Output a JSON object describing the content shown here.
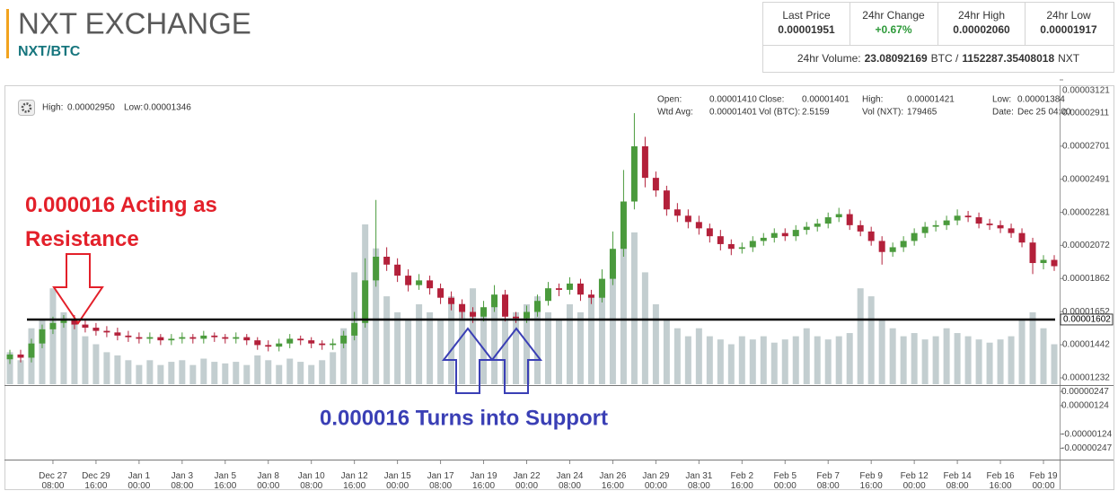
{
  "header": {
    "title": "NXT EXCHANGE",
    "pair": "NXT/BTC"
  },
  "stats": {
    "cells": [
      {
        "label": "Last Price",
        "value": "0.00001951"
      },
      {
        "label": "24hr Change",
        "value": "+0.67%"
      },
      {
        "label": "24hr High",
        "value": "0.00002060"
      },
      {
        "label": "24hr Low",
        "value": "0.00001917"
      }
    ],
    "volume": {
      "label": "24hr Volume:",
      "btc": "23.08092169",
      "btc_unit": "BTC /",
      "nxt": "1152287.35408018",
      "nxt_unit": "NXT"
    }
  },
  "chart_info": {
    "range": [
      {
        "label": "High:",
        "value": "0.00002950"
      },
      {
        "label": "Low:",
        "value": "0.00001346"
      }
    ],
    "ohlc": [
      [
        {
          "label": "Open:",
          "value": "0.00001410"
        },
        {
          "label": "Close:",
          "value": "0.00001401"
        },
        {
          "label": "High:",
          "value": "0.00001421"
        },
        {
          "label": "Low:",
          "value": "0.00001384"
        }
      ],
      [
        {
          "label": "Wtd Avg:",
          "value": "0.00001401"
        },
        {
          "label": "Vol (BTC):",
          "value": "2.5159"
        },
        {
          "label": "Vol (NXT):",
          "value": "179465"
        },
        {
          "label": "Date:",
          "value": "Dec 25 04:00"
        }
      ]
    ]
  },
  "chart_data": {
    "type": "candlestick",
    "categories": [
      null,
      null,
      null,
      null,
      "Dec 27\n08:00",
      null,
      null,
      null,
      "Dec 29\n16:00",
      null,
      null,
      null,
      "Jan 1\n00:00",
      null,
      null,
      null,
      "Jan 3\n08:00",
      null,
      null,
      null,
      "Jan 5\n16:00",
      null,
      null,
      null,
      "Jan 8\n00:00",
      null,
      null,
      null,
      "Jan 10\n08:00",
      null,
      null,
      null,
      "Jan 12\n16:00",
      null,
      null,
      null,
      "Jan 15\n00:00",
      null,
      null,
      null,
      "Jan 17\n08:00",
      null,
      null,
      null,
      "Jan 19\n16:00",
      null,
      null,
      null,
      "Jan 22\n00:00",
      null,
      null,
      null,
      "Jan 24\n08:00",
      null,
      null,
      null,
      "Jan 26\n16:00",
      null,
      null,
      null,
      "Jan 29\n00:00",
      null,
      null,
      null,
      "Jan 31\n08:00",
      null,
      null,
      null,
      "Feb 2\n16:00",
      null,
      null,
      null,
      "Feb 5\n00:00",
      null,
      null,
      null,
      "Feb 7\n08:00",
      null,
      null,
      null,
      "Feb 9\n16:00",
      null,
      null,
      null,
      "Feb 12\n00:00",
      null,
      null,
      null,
      "Feb 14\n08:00",
      null,
      null,
      null,
      "Feb 16\n16:00",
      null,
      null,
      null,
      "Feb 19\n00:00",
      null
    ],
    "open": [
      1.35e-05,
      1.38e-05,
      1.36e-05,
      1.45e-05,
      1.54e-05,
      1.58e-05,
      1.6e-05,
      1.57e-05,
      1.55e-05,
      1.53e-05,
      1.52e-05,
      1.5e-05,
      1.49e-05,
      1.48e-05,
      1.49e-05,
      1.47e-05,
      1.48e-05,
      1.49e-05,
      1.48e-05,
      1.5e-05,
      1.49e-05,
      1.48e-05,
      1.49e-05,
      1.47e-05,
      1.44e-05,
      1.43e-05,
      1.45e-05,
      1.48e-05,
      1.47e-05,
      1.45e-05,
      1.44e-05,
      1.45e-05,
      1.5e-05,
      1.58e-05,
      1.85e-05,
      2e-05,
      1.95e-05,
      1.88e-05,
      1.82e-05,
      1.85e-05,
      1.8e-05,
      1.74e-05,
      1.7e-05,
      1.65e-05,
      1.62e-05,
      1.68e-05,
      1.76e-05,
      1.62e-05,
      1.61e-05,
      1.65e-05,
      1.72e-05,
      1.8e-05,
      1.79e-05,
      1.83e-05,
      1.76e-05,
      1.74e-05,
      1.86e-05,
      2.05e-05,
      2.35e-05,
      2.7e-05,
      2.5e-05,
      2.42e-05,
      2.3e-05,
      2.26e-05,
      2.22e-05,
      2.18e-05,
      2.13e-05,
      2.08e-05,
      2.05e-05,
      2.06e-05,
      2.1e-05,
      2.12e-05,
      2.15e-05,
      2.13e-05,
      2.17e-05,
      2.19e-05,
      2.21e-05,
      2.25e-05,
      2.27e-05,
      2.2e-05,
      2.16e-05,
      2.1e-05,
      2.03e-05,
      2.06e-05,
      2.1e-05,
      2.15e-05,
      2.19e-05,
      2.2e-05,
      2.23e-05,
      2.26e-05,
      2.25e-05,
      2.21e-05,
      2.2e-05,
      2.18e-05,
      2.15e-05,
      2.09e-05,
      1.96e-05,
      1.98e-05
    ],
    "high": [
      1.41e-05,
      1.41e-05,
      1.48e-05,
      1.57e-05,
      1.62e-05,
      1.63e-05,
      1.63e-05,
      1.6e-05,
      1.58e-05,
      1.56e-05,
      1.55e-05,
      1.53e-05,
      1.52e-05,
      1.52e-05,
      1.51e-05,
      1.51e-05,
      1.52e-05,
      1.51e-05,
      1.53e-05,
      1.52e-05,
      1.51e-05,
      1.52e-05,
      1.51e-05,
      1.49e-05,
      1.47e-05,
      1.48e-05,
      1.51e-05,
      1.5e-05,
      1.49e-05,
      1.47e-05,
      1.48e-05,
      1.53e-05,
      1.65e-05,
      1.99e-05,
      2.36e-05,
      2.06e-05,
      1.99e-05,
      1.92e-05,
      1.89e-05,
      1.88e-05,
      1.83e-05,
      1.78e-05,
      1.73e-05,
      1.68e-05,
      1.72e-05,
      1.82e-05,
      1.79e-05,
      1.65e-05,
      1.69e-05,
      1.76e-05,
      1.84e-05,
      1.83e-05,
      1.87e-05,
      1.86e-05,
      1.79e-05,
      1.92e-05,
      2.16e-05,
      2.55e-05,
      2.91e-05,
      2.76e-05,
      2.54e-05,
      2.45e-05,
      2.34e-05,
      2.3e-05,
      2.26e-05,
      2.21e-05,
      2.17e-05,
      2.11e-05,
      2.09e-05,
      2.13e-05,
      2.15e-05,
      2.18e-05,
      2.18e-05,
      2.2e-05,
      2.22e-05,
      2.24e-05,
      2.28e-05,
      2.31e-05,
      2.3e-05,
      2.23e-05,
      2.19e-05,
      2.13e-05,
      2.09e-05,
      2.13e-05,
      2.18e-05,
      2.22e-05,
      2.23e-05,
      2.26e-05,
      2.3e-05,
      2.29e-05,
      2.28e-05,
      2.24e-05,
      2.23e-05,
      2.21e-05,
      2.18e-05,
      2.12e-05,
      2.01e-05,
      2.01e-05
    ],
    "low": [
      1.32e-05,
      1.33e-05,
      1.33e-05,
      1.42e-05,
      1.51e-05,
      1.55e-05,
      1.54e-05,
      1.52e-05,
      1.5e-05,
      1.49e-05,
      1.47e-05,
      1.46e-05,
      1.45e-05,
      1.45e-05,
      1.44e-05,
      1.44e-05,
      1.45e-05,
      1.45e-05,
      1.45e-05,
      1.46e-05,
      1.45e-05,
      1.45e-05,
      1.44e-05,
      1.41e-05,
      1.4e-05,
      1.4e-05,
      1.42e-05,
      1.44e-05,
      1.42e-05,
      1.41e-05,
      1.41e-05,
      1.42e-05,
      1.47e-05,
      1.55e-05,
      1.81e-05,
      1.91e-05,
      1.84e-05,
      1.78e-05,
      1.79e-05,
      1.76e-05,
      1.7e-05,
      1.66e-05,
      1.61e-05,
      1.58e-05,
      1.59e-05,
      1.65e-05,
      1.59e-05,
      1.58e-05,
      1.58e-05,
      1.62e-05,
      1.69e-05,
      1.75e-05,
      1.76e-05,
      1.72e-05,
      1.7e-05,
      1.71e-05,
      1.82e-05,
      2e-05,
      2.3e-05,
      2.44e-05,
      2.38e-05,
      2.26e-05,
      2.22e-05,
      2.18e-05,
      2.14e-05,
      2.09e-05,
      2.04e-05,
      2.01e-05,
      2.02e-05,
      2.03e-05,
      2.07e-05,
      2.09e-05,
      2.1e-05,
      2.1e-05,
      2.14e-05,
      2.16e-05,
      2.18e-05,
      2.22e-05,
      2.17e-05,
      2.13e-05,
      2.07e-05,
      1.95e-05,
      2e-05,
      2.03e-05,
      2.07e-05,
      2.12e-05,
      2.16e-05,
      2.17e-05,
      2.2e-05,
      2.22e-05,
      2.18e-05,
      2.17e-05,
      2.15e-05,
      2.12e-05,
      2.06e-05,
      1.89e-05,
      1.92e-05,
      1.91e-05
    ],
    "close": [
      1.38e-05,
      1.36e-05,
      1.45e-05,
      1.54e-05,
      1.58e-05,
      1.6e-05,
      1.57e-05,
      1.55e-05,
      1.53e-05,
      1.52e-05,
      1.5e-05,
      1.49e-05,
      1.48e-05,
      1.49e-05,
      1.47e-05,
      1.48e-05,
      1.49e-05,
      1.48e-05,
      1.5e-05,
      1.49e-05,
      1.48e-05,
      1.49e-05,
      1.47e-05,
      1.44e-05,
      1.43e-05,
      1.45e-05,
      1.48e-05,
      1.47e-05,
      1.45e-05,
      1.44e-05,
      1.45e-05,
      1.5e-05,
      1.58e-05,
      1.85e-05,
      2e-05,
      1.95e-05,
      1.88e-05,
      1.82e-05,
      1.85e-05,
      1.8e-05,
      1.74e-05,
      1.7e-05,
      1.65e-05,
      1.62e-05,
      1.68e-05,
      1.76e-05,
      1.62e-05,
      1.61e-05,
      1.65e-05,
      1.72e-05,
      1.8e-05,
      1.79e-05,
      1.83e-05,
      1.76e-05,
      1.74e-05,
      1.86e-05,
      2.05e-05,
      2.35e-05,
      2.7e-05,
      2.5e-05,
      2.42e-05,
      2.3e-05,
      2.26e-05,
      2.22e-05,
      2.18e-05,
      2.13e-05,
      2.08e-05,
      2.05e-05,
      2.06e-05,
      2.1e-05,
      2.12e-05,
      2.15e-05,
      2.13e-05,
      2.17e-05,
      2.19e-05,
      2.21e-05,
      2.25e-05,
      2.27e-05,
      2.2e-05,
      2.16e-05,
      2.1e-05,
      2.03e-05,
      2.06e-05,
      2.1e-05,
      2.15e-05,
      2.19e-05,
      2.2e-05,
      2.23e-05,
      2.26e-05,
      2.25e-05,
      2.21e-05,
      2.2e-05,
      2.18e-05,
      2.15e-05,
      2.09e-05,
      1.96e-05,
      1.98e-05,
      1.94e-05
    ],
    "volume": [
      20,
      15,
      35,
      40,
      60,
      45,
      40,
      30,
      25,
      20,
      18,
      15,
      12,
      15,
      12,
      14,
      15,
      12,
      16,
      14,
      13,
      14,
      12,
      18,
      15,
      12,
      16,
      14,
      12,
      15,
      20,
      35,
      70,
      100,
      85,
      55,
      45,
      40,
      50,
      45,
      40,
      55,
      50,
      60,
      45,
      55,
      40,
      45,
      50,
      55,
      45,
      40,
      50,
      45,
      55,
      65,
      80,
      90,
      95,
      70,
      50,
      40,
      35,
      30,
      35,
      30,
      28,
      25,
      30,
      28,
      30,
      26,
      28,
      30,
      35,
      30,
      28,
      30,
      32,
      60,
      55,
      40,
      35,
      30,
      32,
      28,
      30,
      35,
      32,
      30,
      28,
      26,
      28,
      30,
      40,
      45,
      35,
      25
    ],
    "up_color": "#4a9a3c",
    "down_color": "#b3203a",
    "volume_color": "#b9c6c8",
    "ylim": [
      1.192e-05,
      3.121e-05
    ],
    "yticks": [
      3.121e-05,
      2.911e-05,
      2.701e-05,
      2.491e-05,
      2.281e-05,
      2.072e-05,
      1.862e-05,
      1.652e-05,
      1.442e-05,
      1.232e-05
    ],
    "y2lim": [
      -3.3e-06,
      2.95e-06
    ],
    "y2ticks": [
      2.47e-06,
      1.24e-06,
      -1.24e-06,
      -2.47e-06
    ],
    "hline": 1.602e-05,
    "annotations": [
      {
        "text": "0.000016 Acting as\nResistance",
        "color": "#e3202a"
      },
      {
        "text": "0.000016 Turns into Support",
        "color": "#3a3fb5"
      }
    ]
  }
}
